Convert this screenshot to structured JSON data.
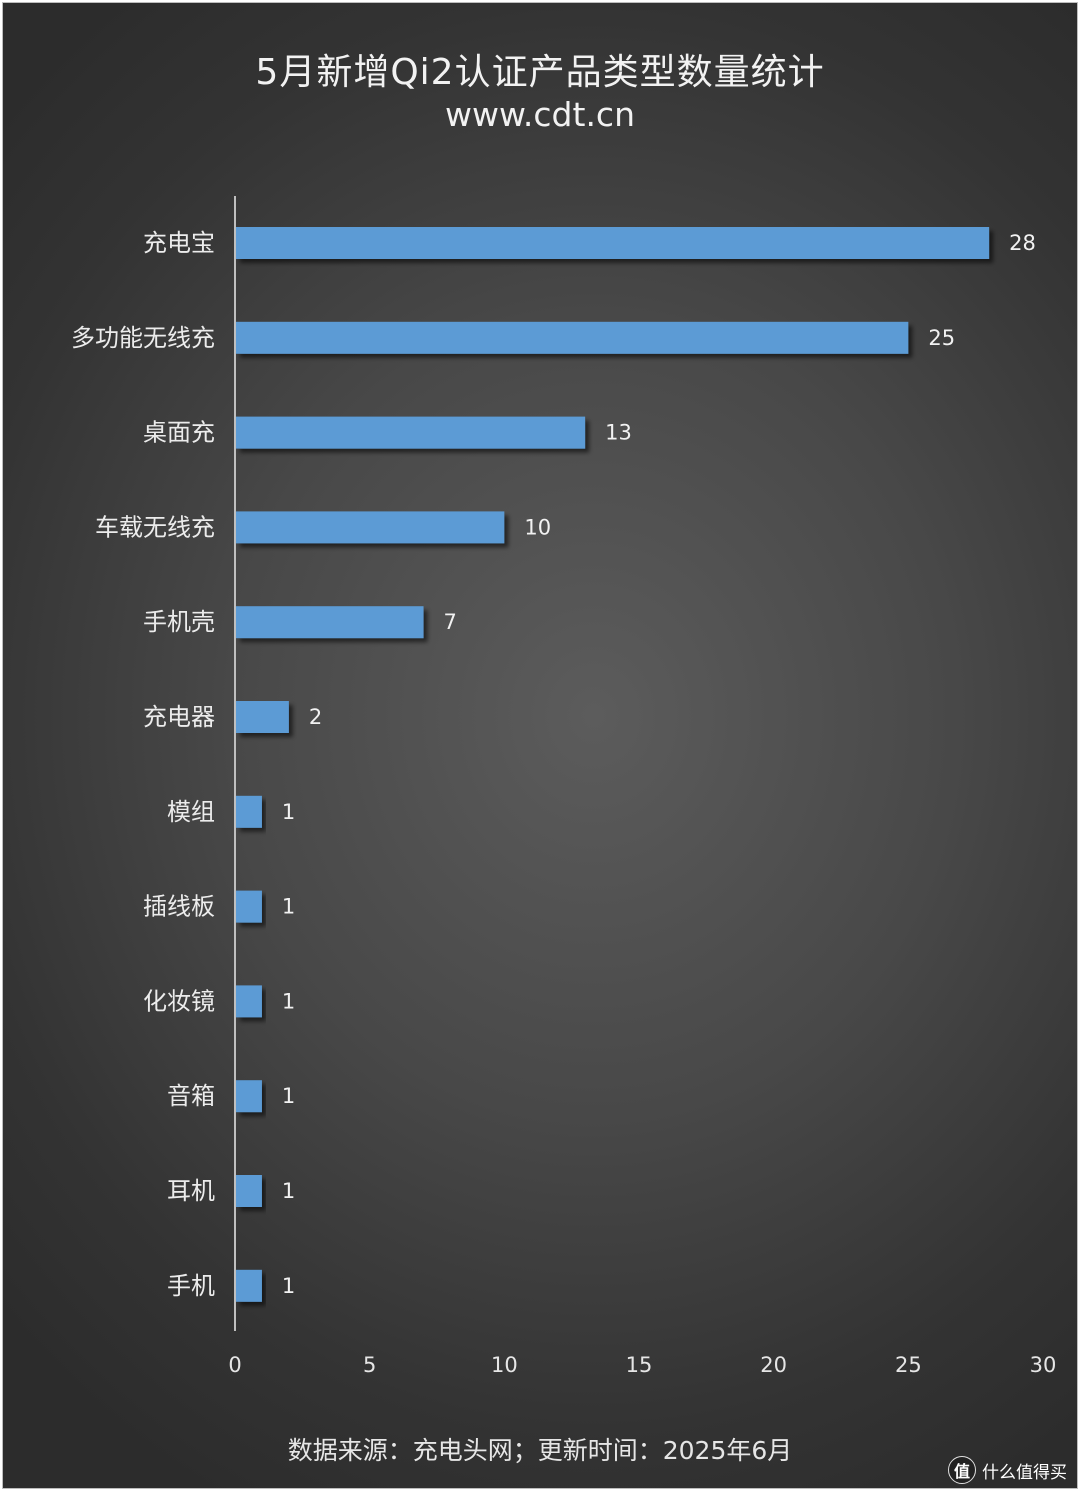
{
  "chart_data": {
    "type": "bar",
    "orientation": "horizontal",
    "title": "5月新增Qi2认证产品类型数量统计",
    "subtitle": "www.cdt.cn",
    "categories": [
      "充电宝",
      "多功能无线充",
      "桌面充",
      "车载无线充",
      "手机壳",
      "充电器",
      "模组",
      "插线板",
      "化妆镜",
      "音箱",
      "耳机",
      "手机"
    ],
    "values": [
      28,
      25,
      13,
      10,
      7,
      2,
      1,
      1,
      1,
      1,
      1,
      1
    ],
    "xlim": [
      0,
      30
    ],
    "xticks": [
      "0",
      "5",
      "10",
      "15",
      "20",
      "25",
      "30"
    ],
    "data_labels": true,
    "grid": false,
    "bar_color": "#5b9bd5"
  },
  "source": "数据来源：充电头网；更新时间：2025年6月",
  "watermark": {
    "logo": "值",
    "text": "什么值得买"
  }
}
